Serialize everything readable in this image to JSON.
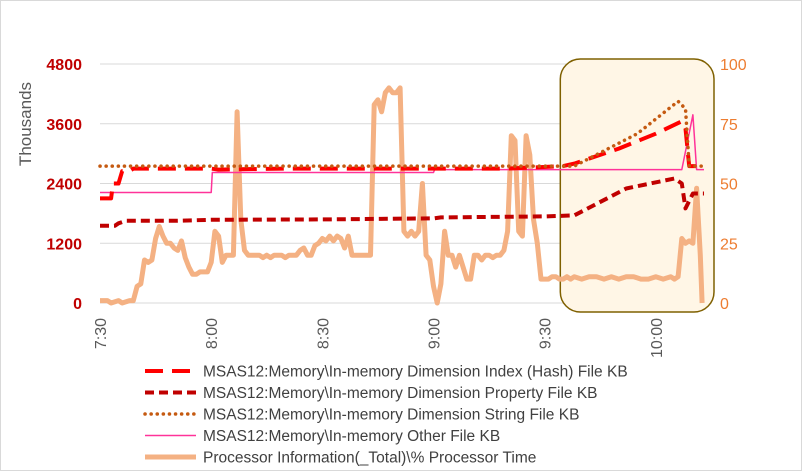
{
  "chart_data": {
    "type": "line",
    "y_left": {
      "title": "Thousands",
      "min": 0,
      "max": 4800,
      "ticks": [
        "0",
        "1200",
        "2400",
        "3600",
        "4800"
      ]
    },
    "y_right": {
      "min": 0,
      "max": 100,
      "ticks": [
        "0",
        "25",
        "50",
        "75",
        "100"
      ]
    },
    "x_axis": {
      "start_min": 450,
      "end_min": 613,
      "ticks": [
        {
          "label": "7:30",
          "min": 450
        },
        {
          "label": "8:00",
          "min": 480
        },
        {
          "label": "8:30",
          "min": 510
        },
        {
          "label": "9:00",
          "min": 540
        },
        {
          "label": "9:30",
          "min": 570
        },
        {
          "label": "10:00",
          "min": 600
        }
      ]
    },
    "grid": "horizontal",
    "legend_position": "bottom",
    "highlight": {
      "x_from_min": 578,
      "x_to_min": 613,
      "fill": "#fff6e6",
      "stroke": "#7f6000"
    },
    "series": [
      {
        "name": "MSAS12:Memory\\In-memory Dimension Index (Hash) File KB",
        "axis": "left",
        "color": "#ff0000",
        "style": "long-dash",
        "points": [
          [
            450,
            2100
          ],
          [
            453,
            2100
          ],
          [
            453.5,
            2400
          ],
          [
            455,
            2400
          ],
          [
            456,
            2650
          ],
          [
            458,
            2650
          ],
          [
            459,
            2700
          ],
          [
            480,
            2700
          ],
          [
            482,
            2680
          ],
          [
            500,
            2700
          ],
          [
            530,
            2700
          ],
          [
            540,
            2700
          ],
          [
            541,
            2700
          ],
          [
            560,
            2700
          ],
          [
            575,
            2750
          ],
          [
            578,
            2800
          ],
          [
            590,
            3100
          ],
          [
            600,
            3400
          ],
          [
            607,
            3650
          ],
          [
            608,
            3500
          ],
          [
            609,
            2750
          ],
          [
            613,
            2750
          ]
        ]
      },
      {
        "name": "MSAS12:Memory\\In-memory Dimension Property File KB",
        "axis": "left",
        "color": "#c00000",
        "style": "short-dash",
        "points": [
          [
            450,
            1550
          ],
          [
            454,
            1550
          ],
          [
            455,
            1600
          ],
          [
            457,
            1650
          ],
          [
            470,
            1650
          ],
          [
            480,
            1670
          ],
          [
            510,
            1680
          ],
          [
            540,
            1700
          ],
          [
            542,
            1720
          ],
          [
            570,
            1740
          ],
          [
            578,
            1760
          ],
          [
            592,
            2300
          ],
          [
            605,
            2500
          ],
          [
            607,
            2400
          ],
          [
            608,
            1900
          ],
          [
            610,
            2200
          ],
          [
            613,
            2200
          ]
        ]
      },
      {
        "name": "MSAS12:Memory\\In-memory Dimension String File KB",
        "axis": "left",
        "color": "#c55a11",
        "style": "dotted",
        "points": [
          [
            450,
            2750
          ],
          [
            578,
            2750
          ],
          [
            595,
            3400
          ],
          [
            606,
            4050
          ],
          [
            608,
            3900
          ],
          [
            609,
            2750
          ],
          [
            613,
            2750
          ]
        ]
      },
      {
        "name": "MSAS12:Memory\\In-memory Other File KB",
        "axis": "left",
        "color": "#ff3399",
        "style": "solid-thin",
        "points": [
          [
            450,
            2220
          ],
          [
            480,
            2220
          ],
          [
            480.3,
            2620
          ],
          [
            540,
            2620
          ],
          [
            540.3,
            2680
          ],
          [
            607,
            2680
          ],
          [
            610,
            3780
          ],
          [
            611,
            2680
          ],
          [
            613,
            2680
          ]
        ]
      },
      {
        "name": "Processor Information(_Total)\\% Processor Time",
        "axis": "right",
        "color": "#f4b183",
        "style": "solid-thick",
        "points": [
          [
            450,
            1
          ],
          [
            452,
            1
          ],
          [
            453,
            0
          ],
          [
            455,
            1
          ],
          [
            456,
            0
          ],
          [
            458,
            1
          ],
          [
            459,
            1
          ],
          [
            460,
            7
          ],
          [
            461,
            8
          ],
          [
            462,
            18
          ],
          [
            463,
            17
          ],
          [
            464,
            18
          ],
          [
            465,
            27
          ],
          [
            466,
            32
          ],
          [
            467,
            28
          ],
          [
            468,
            25
          ],
          [
            469,
            25
          ],
          [
            470,
            23
          ],
          [
            471,
            22
          ],
          [
            472,
            26
          ],
          [
            473,
            19
          ],
          [
            474,
            15
          ],
          [
            475,
            12
          ],
          [
            476,
            12
          ],
          [
            477,
            13
          ],
          [
            478,
            13
          ],
          [
            479,
            13
          ],
          [
            480,
            17
          ],
          [
            481,
            30
          ],
          [
            482,
            28
          ],
          [
            483,
            17
          ],
          [
            484,
            20
          ],
          [
            485,
            20
          ],
          [
            486,
            20
          ],
          [
            487,
            80
          ],
          [
            488,
            35
          ],
          [
            489,
            22
          ],
          [
            490,
            20
          ],
          [
            491,
            20
          ],
          [
            492,
            20
          ],
          [
            493,
            20
          ],
          [
            494,
            19
          ],
          [
            495,
            20
          ],
          [
            496,
            19
          ],
          [
            497,
            20
          ],
          [
            498,
            20
          ],
          [
            499,
            20
          ],
          [
            500,
            19
          ],
          [
            501,
            20
          ],
          [
            502,
            20
          ],
          [
            503,
            20
          ],
          [
            504,
            22
          ],
          [
            505,
            23
          ],
          [
            506,
            20
          ],
          [
            507,
            20
          ],
          [
            508,
            24
          ],
          [
            509,
            25
          ],
          [
            510,
            27
          ],
          [
            511,
            26
          ],
          [
            512,
            28
          ],
          [
            513,
            26
          ],
          [
            514,
            28
          ],
          [
            515,
            27
          ],
          [
            516,
            23
          ],
          [
            517,
            28
          ],
          [
            518,
            20
          ],
          [
            519,
            20
          ],
          [
            520,
            20
          ],
          [
            521,
            20
          ],
          [
            522,
            20
          ],
          [
            523,
            20
          ],
          [
            524,
            83
          ],
          [
            525,
            85
          ],
          [
            526,
            80
          ],
          [
            527,
            88
          ],
          [
            528,
            90
          ],
          [
            529,
            88
          ],
          [
            530,
            88
          ],
          [
            531,
            90
          ],
          [
            532,
            30
          ],
          [
            533,
            28
          ],
          [
            534,
            30
          ],
          [
            535,
            28
          ],
          [
            536,
            30
          ],
          [
            537,
            50
          ],
          [
            538,
            20
          ],
          [
            539,
            18
          ],
          [
            540,
            7
          ],
          [
            541,
            0
          ],
          [
            542,
            8
          ],
          [
            543,
            30
          ],
          [
            544,
            20
          ],
          [
            545,
            20
          ],
          [
            546,
            15
          ],
          [
            547,
            20
          ],
          [
            548,
            15
          ],
          [
            549,
            10
          ],
          [
            550,
            10
          ],
          [
            551,
            20
          ],
          [
            552,
            20
          ],
          [
            553,
            18
          ],
          [
            554,
            20
          ],
          [
            555,
            20
          ],
          [
            556,
            19
          ],
          [
            557,
            20
          ],
          [
            558,
            20
          ],
          [
            559,
            22
          ],
          [
            560,
            30
          ],
          [
            561,
            70
          ],
          [
            562,
            68
          ],
          [
            563,
            30
          ],
          [
            564,
            28
          ],
          [
            565,
            70
          ],
          [
            566,
            62
          ],
          [
            567,
            35
          ],
          [
            568,
            25
          ],
          [
            569,
            10
          ],
          [
            570,
            10
          ],
          [
            571,
            10
          ],
          [
            572,
            11
          ],
          [
            573,
            11
          ],
          [
            574,
            10
          ],
          [
            575,
            10
          ],
          [
            576,
            11
          ],
          [
            577,
            10
          ],
          [
            578,
            11
          ],
          [
            580,
            10
          ],
          [
            582,
            11
          ],
          [
            584,
            11
          ],
          [
            586,
            10
          ],
          [
            588,
            11
          ],
          [
            590,
            10
          ],
          [
            592,
            11
          ],
          [
            594,
            11
          ],
          [
            596,
            10
          ],
          [
            598,
            10
          ],
          [
            600,
            11
          ],
          [
            602,
            10
          ],
          [
            604,
            11
          ],
          [
            605,
            10
          ],
          [
            606,
            11
          ],
          [
            607,
            27
          ],
          [
            608,
            25
          ],
          [
            609,
            26
          ],
          [
            610,
            25
          ],
          [
            611,
            48
          ],
          [
            612,
            20
          ],
          [
            612.5,
            0
          ]
        ]
      }
    ]
  }
}
